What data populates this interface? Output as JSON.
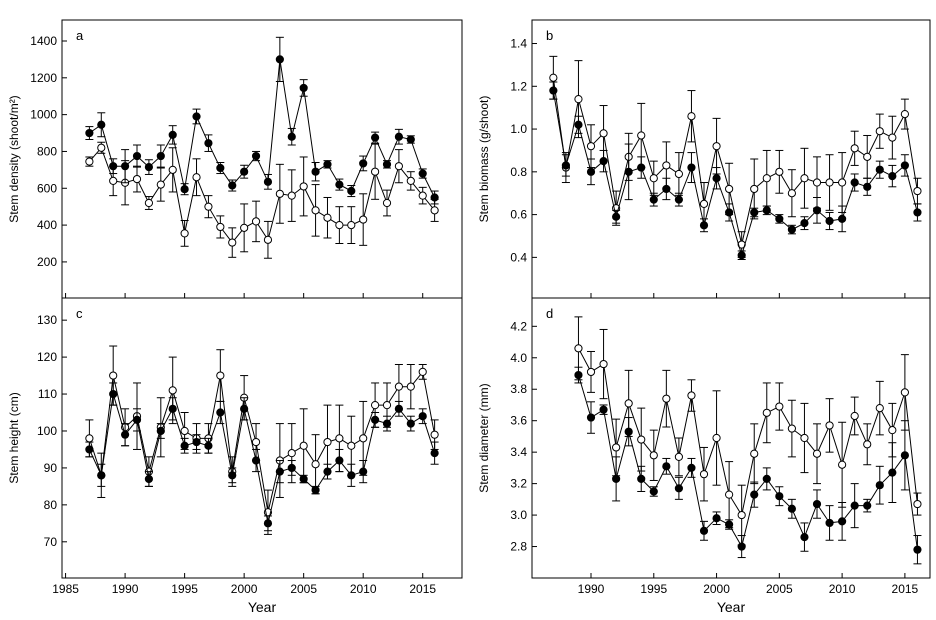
{
  "chart_data": [
    {
      "type": "line",
      "panel_label": "a",
      "ylabel": "Stem density (shoot/m²)",
      "xlabel": "",
      "xlim": [
        1984.7,
        2018.3
      ],
      "ylim": [
        4,
        1514
      ],
      "xticks": [
        1985,
        1990,
        1995,
        2000,
        2005,
        2010,
        2015
      ],
      "yticks": [
        200,
        400,
        600,
        800,
        1000,
        1200,
        1400
      ],
      "show_xtick_labels": false,
      "x": [
        1987,
        1988,
        1989,
        1990,
        1991,
        1992,
        1993,
        1994,
        1995,
        1996,
        1997,
        1998,
        1999,
        2000,
        2001,
        2002,
        2003,
        2004,
        2005,
        2006,
        2007,
        2008,
        2009,
        2010,
        2011,
        2012,
        2013,
        2014,
        2015,
        2016
      ],
      "series": [
        {
          "name": "filled",
          "marker": "filled-circle",
          "values": [
            900,
            945,
            720,
            720,
            775,
            715,
            775,
            890,
            595,
            990,
            845,
            710,
            615,
            690,
            775,
            635,
            1300,
            880,
            1145,
            690,
            730,
            620,
            585,
            735,
            875,
            730,
            880,
            865,
            680,
            550
          ],
          "errors": [
            35,
            65,
            40,
            90,
            60,
            40,
            60,
            50,
            30,
            40,
            45,
            30,
            30,
            35,
            25,
            40,
            120,
            45,
            45,
            50,
            20,
            30,
            30,
            40,
            30,
            20,
            40,
            20,
            25,
            35
          ]
        },
        {
          "name": "open",
          "marker": "open-circle",
          "values": [
            745,
            820,
            640,
            630,
            650,
            520,
            620,
            700,
            355,
            660,
            500,
            390,
            305,
            385,
            420,
            320,
            570,
            560,
            610,
            480,
            440,
            400,
            400,
            430,
            690,
            520,
            720,
            640,
            560,
            480
          ],
          "errors": [
            25,
            30,
            80,
            120,
            70,
            35,
            90,
            120,
            70,
            100,
            60,
            60,
            80,
            130,
            110,
            100,
            160,
            140,
            160,
            140,
            110,
            100,
            100,
            140,
            150,
            70,
            90,
            50,
            45,
            60
          ]
        }
      ]
    },
    {
      "type": "line",
      "panel_label": "b",
      "ylabel": "Stem biomass (g/shoot)",
      "xlabel": "",
      "xlim": [
        1985.3,
        2017
      ],
      "ylim": [
        0.21,
        1.51
      ],
      "xticks": [
        1990,
        1995,
        2000,
        2005,
        2010,
        2015
      ],
      "yticks": [
        0.4,
        0.6,
        0.8,
        1.0,
        1.2,
        1.4
      ],
      "ytick_labels": [
        "0.4",
        "0.6",
        "0.8",
        "1.0",
        "1.2",
        "1.4"
      ],
      "show_xtick_labels": false,
      "x": [
        1987,
        1988,
        1989,
        1990,
        1991,
        1992,
        1993,
        1994,
        1995,
        1996,
        1997,
        1998,
        1999,
        2000,
        2001,
        2002,
        2003,
        2004,
        2005,
        2006,
        2007,
        2008,
        2009,
        2010,
        2011,
        2012,
        2013,
        2014,
        2015,
        2016
      ],
      "series": [
        {
          "name": "filled",
          "marker": "filled-circle",
          "values": [
            1.18,
            0.83,
            1.02,
            0.8,
            0.85,
            0.59,
            0.8,
            0.82,
            0.67,
            0.72,
            0.67,
            0.82,
            0.55,
            0.77,
            0.61,
            0.41,
            0.61,
            0.62,
            0.58,
            0.53,
            0.56,
            0.62,
            0.57,
            0.58,
            0.75,
            0.73,
            0.81,
            0.78,
            0.83,
            0.61
          ],
          "errors": [
            0.04,
            0.05,
            0.04,
            0.06,
            0.05,
            0.03,
            0.13,
            0.05,
            0.03,
            0.05,
            0.03,
            0.07,
            0.03,
            0.05,
            0.04,
            0.02,
            0.02,
            0.02,
            0.02,
            0.02,
            0.03,
            0.06,
            0.04,
            0.06,
            0.04,
            0.04,
            0.04,
            0.05,
            0.05,
            0.04
          ]
        },
        {
          "name": "open",
          "marker": "open-circle",
          "values": [
            1.24,
            0.82,
            1.14,
            0.92,
            0.98,
            0.63,
            0.87,
            0.97,
            0.77,
            0.83,
            0.79,
            1.06,
            0.65,
            0.92,
            0.72,
            0.46,
            0.72,
            0.77,
            0.8,
            0.7,
            0.77,
            0.75,
            0.75,
            0.75,
            0.91,
            0.87,
            0.99,
            0.96,
            1.07,
            0.71
          ],
          "errors": [
            0.1,
            0.07,
            0.18,
            0.1,
            0.13,
            0.08,
            0.11,
            0.15,
            0.08,
            0.11,
            0.1,
            0.12,
            0.1,
            0.13,
            0.12,
            0.06,
            0.14,
            0.13,
            0.1,
            0.11,
            0.14,
            0.12,
            0.13,
            0.14,
            0.08,
            0.1,
            0.08,
            0.1,
            0.07,
            0.06
          ]
        }
      ]
    },
    {
      "type": "line",
      "panel_label": "c",
      "ylabel": "Stem height (cm)",
      "xlabel": "Year",
      "xlim": [
        1984.7,
        2018.3
      ],
      "ylim": [
        60.2,
        136
      ],
      "xticks": [
        1985,
        1990,
        1995,
        2000,
        2005,
        2010,
        2015
      ],
      "yticks": [
        70,
        80,
        90,
        100,
        110,
        120,
        130
      ],
      "show_xtick_labels": true,
      "x": [
        1987,
        1988,
        1989,
        1990,
        1991,
        1992,
        1993,
        1994,
        1995,
        1996,
        1997,
        1998,
        1999,
        2000,
        2001,
        2002,
        2003,
        2004,
        2005,
        2006,
        2007,
        2008,
        2009,
        2010,
        2011,
        2012,
        2013,
        2014,
        2015,
        2016
      ],
      "series": [
        {
          "name": "filled",
          "marker": "filled-circle",
          "values": [
            95,
            88,
            110,
            99,
            103,
            87,
            100,
            106,
            96,
            97,
            96,
            105,
            88,
            106,
            92,
            75,
            89,
            90,
            87,
            84,
            89,
            92,
            88,
            89,
            103,
            102,
            106,
            102,
            104,
            94
          ],
          "errors": [
            2,
            3,
            3,
            3,
            3,
            2,
            2,
            3,
            2,
            2,
            2,
            3,
            2,
            3,
            3,
            2,
            3,
            2,
            1,
            1,
            2,
            3,
            3,
            3,
            2,
            2,
            2,
            2,
            2,
            3
          ]
        },
        {
          "name": "open",
          "marker": "open-circle",
          "values": [
            98,
            88,
            115,
            101,
            104,
            89,
            101,
            111,
            100,
            98,
            98,
            115,
            89,
            109,
            97,
            78,
            92,
            94,
            96,
            91,
            97,
            98,
            96,
            98,
            107,
            107,
            112,
            112,
            116,
            99
          ],
          "errors": [
            5,
            6,
            8,
            5,
            9,
            4,
            8,
            9,
            5,
            4,
            4,
            7,
            4,
            6,
            5,
            6,
            10,
            8,
            10,
            8,
            10,
            9,
            8,
            10,
            6,
            6,
            6,
            6,
            2,
            4
          ]
        }
      ]
    },
    {
      "type": "line",
      "panel_label": "d",
      "ylabel": "Stem diameter (mm)",
      "xlabel": "Year",
      "xlim": [
        1985.3,
        2017
      ],
      "ylim": [
        2.6,
        4.38
      ],
      "xticks": [
        1985,
        1990,
        1995,
        2000,
        2005,
        2010,
        2015
      ],
      "yticks": [
        2.8,
        3.0,
        3.2,
        3.4,
        3.6,
        3.8,
        4.0,
        4.2
      ],
      "ytick_labels": [
        "2.8",
        "3.0",
        "3.2",
        "3.4",
        "3.6",
        "3.8",
        "4.0",
        "4.2"
      ],
      "show_xtick_labels": true,
      "x": [
        1989,
        1990,
        1991,
        1992,
        1993,
        1994,
        1995,
        1996,
        1997,
        1998,
        1999,
        2000,
        2001,
        2002,
        2003,
        2004,
        2005,
        2006,
        2007,
        2008,
        2009,
        2010,
        2011,
        2012,
        2013,
        2014,
        2015,
        2016
      ],
      "series": [
        {
          "name": "filled",
          "marker": "filled-circle",
          "values": [
            3.89,
            3.62,
            3.67,
            3.23,
            3.53,
            3.23,
            3.15,
            3.31,
            3.17,
            3.3,
            2.9,
            2.98,
            2.94,
            2.8,
            3.13,
            3.23,
            3.12,
            3.04,
            2.86,
            3.07,
            2.95,
            2.96,
            3.06,
            3.06,
            3.19,
            3.27,
            3.38,
            2.78
          ],
          "errors": [
            0.05,
            0.1,
            0.03,
            0.14,
            0.09,
            0.08,
            0.03,
            0.05,
            0.07,
            0.06,
            0.06,
            0.04,
            0.03,
            0.07,
            0.08,
            0.07,
            0.06,
            0.06,
            0.09,
            0.09,
            0.11,
            0.12,
            0.14,
            0.04,
            0.12,
            0.19,
            0.22,
            0.09
          ]
        },
        {
          "name": "open",
          "marker": "open-circle",
          "values": [
            4.06,
            3.91,
            3.96,
            3.43,
            3.71,
            3.48,
            3.38,
            3.74,
            3.37,
            3.76,
            3.26,
            3.49,
            3.13,
            3.0,
            3.39,
            3.65,
            3.69,
            3.55,
            3.49,
            3.39,
            3.57,
            3.32,
            3.63,
            3.45,
            3.68,
            3.54,
            3.78,
            3.07
          ],
          "errors": [
            0.2,
            0.13,
            0.22,
            0.18,
            0.21,
            0.2,
            0.16,
            0.18,
            0.12,
            0.1,
            0.17,
            0.3,
            0.21,
            0.19,
            0.19,
            0.19,
            0.15,
            0.18,
            0.22,
            0.19,
            0.17,
            0.27,
            0.12,
            0.13,
            0.17,
            0.17,
            0.24,
            0.07
          ]
        }
      ]
    }
  ]
}
